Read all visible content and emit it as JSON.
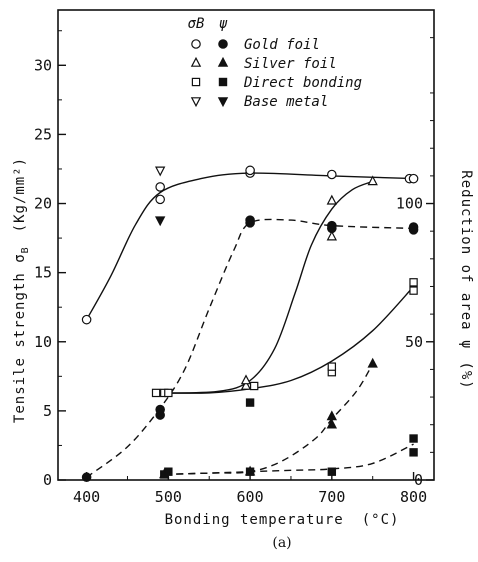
{
  "chart_data": {
    "type": "line",
    "caption": "(a)",
    "xlabel": "Bonding temperature",
    "xunit": "(°C)",
    "ylabel_left": "Tensile strength σ",
    "ylabel_left_sub": "B",
    "ylabel_left_unit": "(Kg/mm²)",
    "ylabel_right": "Reduction of area ψ",
    "ylabel_right_unit": "(%)",
    "xlim": [
      365,
      825
    ],
    "ylim_left": [
      0,
      34
    ],
    "ylim_right": [
      0,
      170
    ],
    "xticks": [
      400,
      500,
      600,
      700,
      800
    ],
    "yticks_left": [
      0,
      5,
      10,
      15,
      20,
      25,
      30
    ],
    "yticks_right": [
      0,
      50,
      100
    ],
    "legend": {
      "header_sigma": "σB",
      "header_psi": "ψ",
      "placement": "top-center",
      "entries": [
        {
          "open": "○",
          "filled": "●",
          "label": "Gold foil"
        },
        {
          "open": "△",
          "filled": "▲",
          "label": "Silver foil"
        },
        {
          "open": "□",
          "filled": "■",
          "label": "Direct bonding"
        },
        {
          "open": "▽",
          "filled": "▼",
          "label": "Base metal"
        }
      ]
    },
    "series": [
      {
        "name": "Gold foil",
        "quantity": "σB",
        "marker": "circle-open",
        "line": "solid",
        "x": [
          400,
          490,
          490,
          600,
          600,
          700,
          795,
          800
        ],
        "y": [
          11.6,
          20.3,
          21.2,
          22.2,
          22.4,
          22.1,
          21.8,
          21.8
        ]
      },
      {
        "name": "Gold foil",
        "quantity": "ψ",
        "marker": "circle-filled",
        "line": "dashed",
        "x": [
          400,
          490,
          490,
          600,
          600,
          700,
          700,
          800,
          800
        ],
        "y": [
          1,
          23.5,
          25.5,
          93,
          94,
          92,
          91,
          90.5,
          91.5
        ]
      },
      {
        "name": "Silver foil",
        "quantity": "σB",
        "marker": "triangle-open",
        "line": "solid",
        "x": [
          595,
          595,
          700,
          700,
          750
        ],
        "y": [
          6.8,
          7.2,
          17.6,
          20.2,
          21.6
        ]
      },
      {
        "name": "Silver foil",
        "quantity": "ψ",
        "marker": "triangle-filled",
        "line": "dashed",
        "x": [
          495,
          600,
          700,
          700,
          750
        ],
        "y": [
          2,
          3,
          20,
          23,
          42
        ]
      },
      {
        "name": "Direct bonding",
        "quantity": "σB",
        "marker": "square-open",
        "line": "solid",
        "x": [
          485,
          495,
          500,
          605,
          700,
          700,
          800,
          800
        ],
        "y": [
          6.3,
          6.3,
          6.3,
          6.8,
          7.8,
          8.2,
          13.7,
          14.3
        ]
      },
      {
        "name": "Direct bonding",
        "quantity": "σB",
        "marker": "square-filled",
        "line": "none",
        "x": [
          600
        ],
        "y": [
          5.6
        ]
      },
      {
        "name": "Direct bonding",
        "quantity": "ψ",
        "marker": "square-filled",
        "line": "dashed",
        "x": [
          495,
          500,
          600,
          700,
          800,
          800
        ],
        "y": [
          2,
          3,
          3,
          3,
          10,
          15
        ]
      },
      {
        "name": "Base metal",
        "quantity": "σB",
        "marker": "downtriangle-open",
        "line": "none",
        "x": [
          490
        ],
        "y": [
          22.4
        ]
      },
      {
        "name": "Base metal",
        "quantity": "σB",
        "marker": "downtriangle-filled",
        "line": "none",
        "x": [
          490
        ],
        "y": [
          18.8
        ]
      }
    ],
    "curves": [
      {
        "series": "Gold foil σB",
        "line": "solid",
        "x": [
          400,
          430,
          460,
          490,
          540,
          600,
          700,
          800
        ],
        "y": [
          11.6,
          14.8,
          18.5,
          20.8,
          21.8,
          22.2,
          22.0,
          21.8
        ]
      },
      {
        "series": "Silver foil σB",
        "line": "solid",
        "x": [
          485,
          560,
          600,
          630,
          655,
          675,
          700,
          725,
          750
        ],
        "y": [
          6.3,
          6.4,
          7.2,
          9.5,
          13.5,
          17.0,
          19.6,
          21.0,
          21.6
        ]
      },
      {
        "series": "Direct bonding σB",
        "line": "solid",
        "x": [
          485,
          550,
          600,
          650,
          700,
          750,
          800
        ],
        "y": [
          6.3,
          6.3,
          6.6,
          7.2,
          8.6,
          10.8,
          14.0
        ]
      },
      {
        "series": "Gold foil ψ",
        "line": "dashed",
        "x": [
          400,
          450,
          490,
          520,
          550,
          580,
          600,
          650,
          700,
          800
        ],
        "y": [
          1,
          12,
          26,
          40,
          62,
          83,
          93,
          94,
          92,
          91
        ]
      },
      {
        "series": "Silver foil ψ",
        "line": "dashed",
        "x": [
          495,
          550,
          600,
          640,
          680,
          700,
          730,
          750
        ],
        "y": [
          2,
          2.5,
          3,
          7,
          15,
          22,
          32,
          42
        ]
      },
      {
        "series": "Direct bonding ψ",
        "line": "dashed",
        "x": [
          495,
          550,
          600,
          650,
          700,
          750,
          800
        ],
        "y": [
          2,
          2.5,
          3,
          3.5,
          4,
          6,
          13
        ]
      }
    ]
  }
}
